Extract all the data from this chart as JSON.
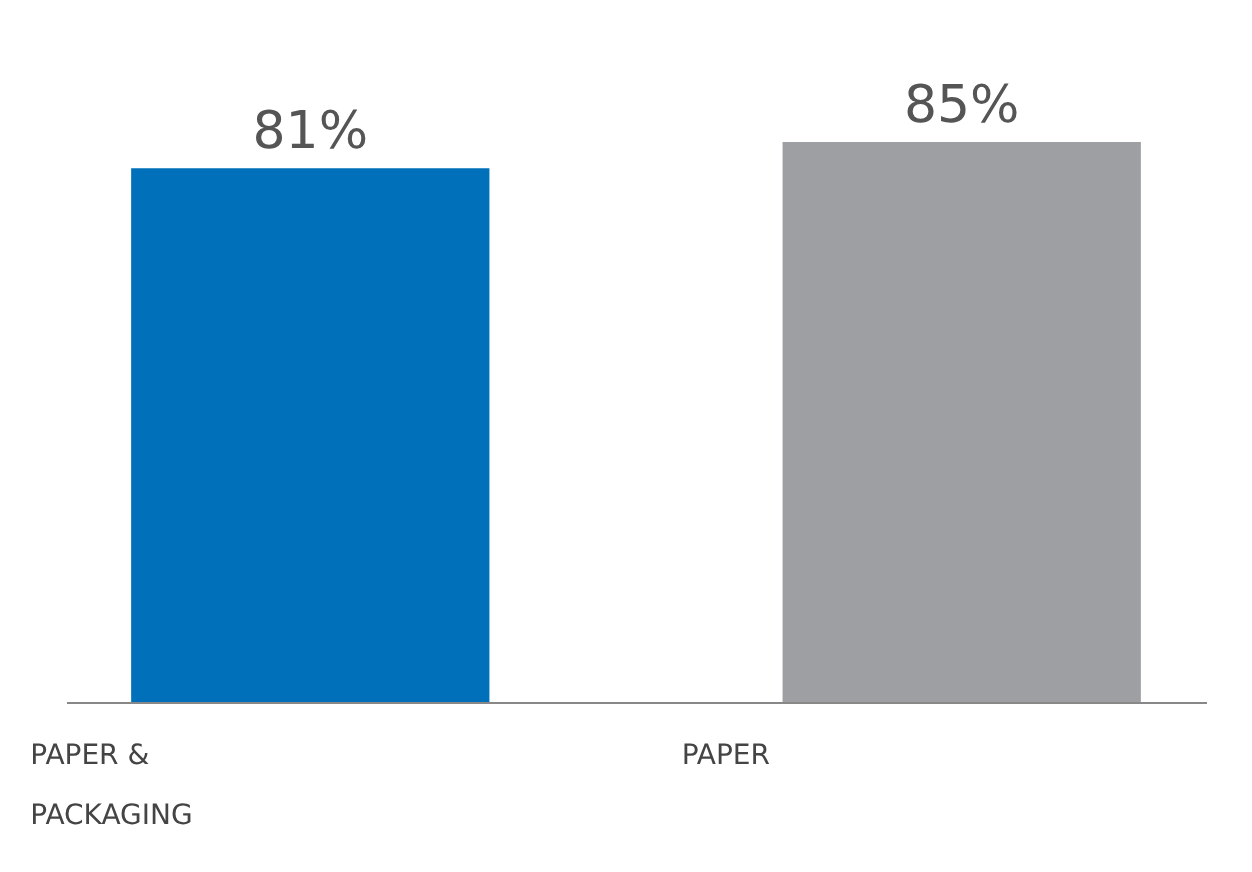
{
  "chart_data": {
    "type": "bar",
    "categories": [
      "PAPER & PACKAGING",
      "PAPER"
    ],
    "values": [
      81,
      85
    ],
    "colors": [
      "#0070bb",
      "#9d9fa2"
    ],
    "data_labels": true,
    "value_labels": [
      "81%",
      "85%"
    ]
  }
}
